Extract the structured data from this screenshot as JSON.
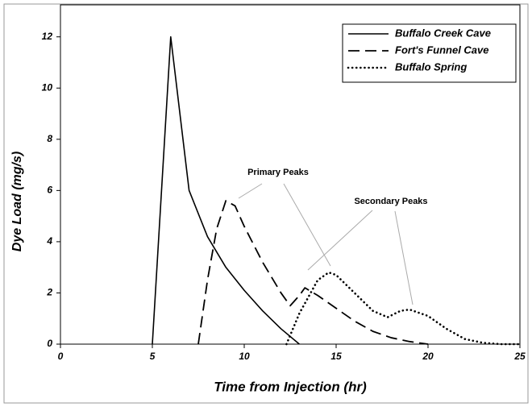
{
  "chart_data": {
    "type": "line",
    "xlabel": "Time from Injection (hr)",
    "ylabel": "Dye Load (mg/s)",
    "xlim": [
      0,
      25
    ],
    "xticks": [
      0,
      5,
      10,
      15,
      20,
      25
    ],
    "ylim": [
      0,
      13.25
    ],
    "yticks": [
      0,
      2,
      4,
      6,
      8,
      10,
      12
    ],
    "legend": "upper right",
    "series": [
      {
        "name": "Buffalo Creek Cave",
        "color": "#000000",
        "style": "solid",
        "x": [
          5,
          6,
          7,
          8,
          9,
          10,
          11,
          12,
          13
        ],
        "values": [
          0,
          12,
          6,
          4.2,
          3.0,
          2.1,
          1.3,
          0.6,
          0
        ]
      },
      {
        "name": "Fort's Funnel Cave",
        "color": "#000000",
        "style": "dashed",
        "x": [
          7.5,
          8,
          8.5,
          9,
          9.5,
          10,
          11,
          12,
          12.5,
          13,
          13.3,
          14,
          15,
          16,
          17,
          18,
          19,
          20
        ],
        "values": [
          0,
          2.5,
          4.5,
          5.6,
          5.4,
          4.6,
          3.2,
          2.0,
          1.5,
          1.9,
          2.2,
          1.9,
          1.4,
          0.9,
          0.5,
          0.25,
          0.1,
          0
        ]
      },
      {
        "name": "Buffalo Spring",
        "color": "#000000",
        "style": "dotted",
        "x": [
          12.3,
          13,
          14,
          14.6,
          15,
          16,
          17,
          17.8,
          18.5,
          19,
          20,
          21,
          22,
          23,
          24,
          25
        ],
        "values": [
          0,
          1.2,
          2.5,
          2.8,
          2.7,
          2.0,
          1.3,
          1.05,
          1.3,
          1.35,
          1.1,
          0.6,
          0.2,
          0.05,
          0,
          0
        ]
      }
    ],
    "annotations": [
      "Primary Peaks",
      "Secondary Peaks"
    ]
  }
}
